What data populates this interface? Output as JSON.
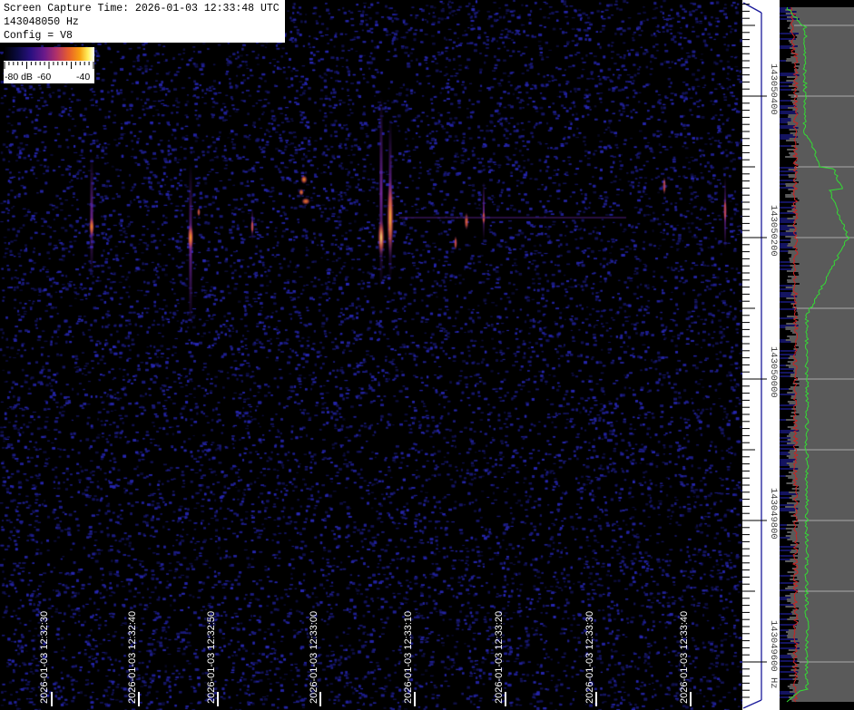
{
  "info": {
    "capture_time": "Screen Capture Time: 2026-01-03 12:33:48 UTC",
    "frequency": "143048050 Hz",
    "config": "Config = V8"
  },
  "colorbar": {
    "labels": [
      "-80 dB",
      "-60",
      "-40"
    ],
    "colormap": [
      "#000000",
      "#2a1080",
      "#b0306a",
      "#f8a010",
      "#ffffff"
    ]
  },
  "time_axis": {
    "labels": [
      "2026-01-03 12:32:30",
      "2026-01-03 12:32:40",
      "2026-01-03 12:32:50",
      "2026-01-03 12:33:00",
      "2026-01-03 12:33:10",
      "2026-01-03 12:33:20",
      "2026-01-03 12:33:30",
      "2026-01-03 12:33:40"
    ]
  },
  "frequency_axis": {
    "labels": [
      "143050400",
      "143050200",
      "143050000",
      "143049800",
      "143049600 Hz"
    ]
  },
  "colors": {
    "background": "#000000",
    "noise": "#1a1a8a",
    "spectrum_panel": "#5a5a5a",
    "peak_trace": "#33dd33",
    "average_trace": "#cc2222",
    "axis_line": "#1a1a9a"
  }
}
